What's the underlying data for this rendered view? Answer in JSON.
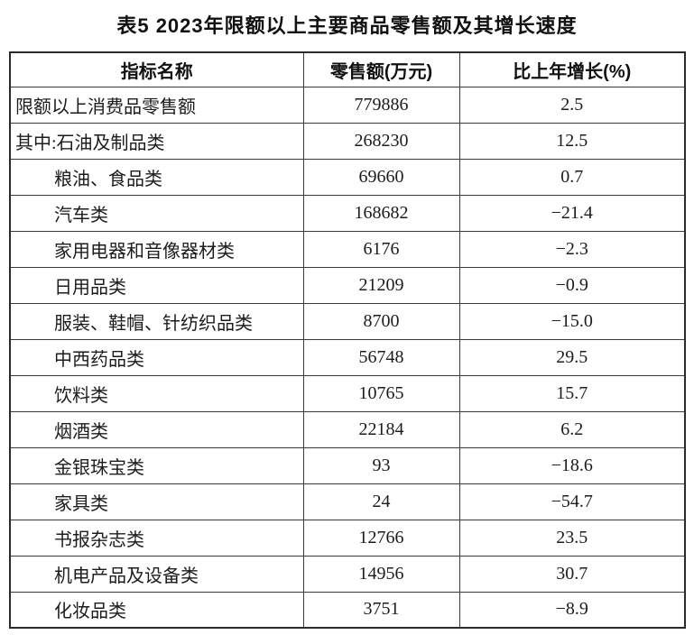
{
  "title": "表5 2023年限额以上主要商品零售额及其增长速度",
  "table": {
    "columns": [
      "指标名称",
      "零售额(万元)",
      "比上年增长(%)"
    ],
    "rows": [
      {
        "name": "限额以上消费品零售额",
        "indent": false,
        "value": "779886",
        "growth": "2.5"
      },
      {
        "name": "其中:石油及制品类",
        "indent": false,
        "value": "268230",
        "growth": "12.5"
      },
      {
        "name": "粮油、食品类",
        "indent": true,
        "value": "69660",
        "growth": "0.7"
      },
      {
        "name": "汽车类",
        "indent": true,
        "value": "168682",
        "growth": "−21.4"
      },
      {
        "name": "家用电器和音像器材类",
        "indent": true,
        "value": "6176",
        "growth": "−2.3"
      },
      {
        "name": "日用品类",
        "indent": true,
        "value": "21209",
        "growth": "−0.9"
      },
      {
        "name": "服装、鞋帽、针纺织品类",
        "indent": true,
        "value": "8700",
        "growth": "−15.0"
      },
      {
        "name": "中西药品类",
        "indent": true,
        "value": "56748",
        "growth": "29.5"
      },
      {
        "name": "饮料类",
        "indent": true,
        "value": "10765",
        "growth": "15.7"
      },
      {
        "name": "烟酒类",
        "indent": true,
        "value": "22184",
        "growth": "6.2"
      },
      {
        "name": "金银珠宝类",
        "indent": true,
        "value": "93",
        "growth": "−18.6"
      },
      {
        "name": "家具类",
        "indent": true,
        "value": "24",
        "growth": "−54.7"
      },
      {
        "name": "书报杂志类",
        "indent": true,
        "value": "12766",
        "growth": "23.5"
      },
      {
        "name": "机电产品及设备类",
        "indent": true,
        "value": "14956",
        "growth": "30.7"
      },
      {
        "name": "化妆品类",
        "indent": true,
        "value": "3751",
        "growth": "−8.9"
      }
    ]
  },
  "colors": {
    "background": "#ffffff",
    "text": "#1c1c1c",
    "border_outer": "#2b2b2b",
    "border_inner": "#3a3a3a"
  }
}
